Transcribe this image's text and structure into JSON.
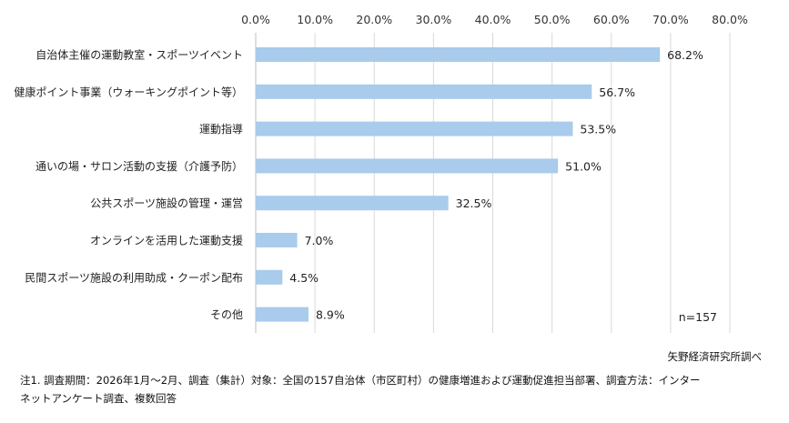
{
  "chart_data": {
    "type": "bar",
    "orientation": "horizontal",
    "categories": [
      "自治体主催の運動教室・スポーツイベント",
      "健康ポイント事業（ウォーキングポイント等）",
      "運動指導",
      "通いの場・サロン活動の支援（介護予防）",
      "公共スポーツ施設の管理・運営",
      "オンラインを活用した運動支援",
      "民間スポーツ施設の利用助成・クーポン配布",
      "その他"
    ],
    "values": [
      68.2,
      56.7,
      53.5,
      51.0,
      32.5,
      7.0,
      4.5,
      8.9
    ],
    "value_labels": [
      "68.2%",
      "56.7%",
      "53.5%",
      "51.0%",
      "32.5%",
      "7.0%",
      "4.5%",
      "8.9%"
    ],
    "xlim": [
      0,
      80
    ],
    "x_ticks": [
      0,
      10,
      20,
      30,
      40,
      50,
      60,
      70,
      80
    ],
    "x_tick_labels": [
      "0.0%",
      "10.0%",
      "20.0%",
      "30.0%",
      "40.0%",
      "50.0%",
      "60.0%",
      "70.0%",
      "80.0%"
    ],
    "axis_position": "top",
    "grid": true,
    "bar_color": "#a9cbec",
    "n_label": "n=157"
  },
  "source": "矢野経済研究所調べ",
  "note_line1": "注1. 調査期間：2026年1月～2月、調査（集計）対象：全国の157自治体（市区町村）の健康増進および運動促進担当部署、調査方法：インター",
  "note_line2": "ネットアンケート調査、複数回答"
}
